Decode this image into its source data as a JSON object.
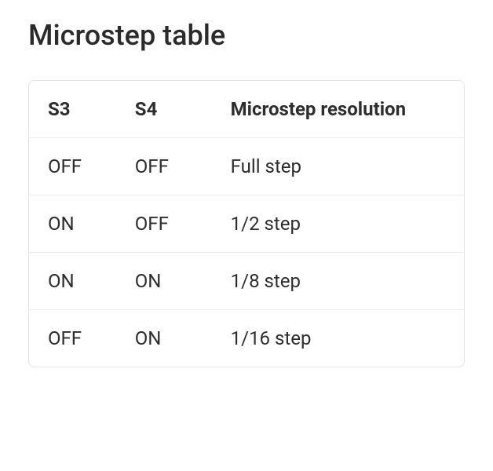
{
  "title": "Microstep table",
  "table": {
    "columns": [
      "S3",
      "S4",
      "Microstep resolution"
    ],
    "rows": [
      [
        "OFF",
        "OFF",
        "Full step"
      ],
      [
        "ON",
        "OFF",
        "1/2 step"
      ],
      [
        "ON",
        "ON",
        "1/8 step"
      ],
      [
        "OFF",
        "ON",
        "1/16 step"
      ]
    ],
    "border_color": "#e5e5e5",
    "row_divider_color": "#ececec",
    "text_color": "#2d2d2d",
    "title_fontsize": 36,
    "cell_fontsize": 24,
    "background_color": "#ffffff",
    "col_widths_pct": [
      20,
      22,
      58
    ]
  }
}
